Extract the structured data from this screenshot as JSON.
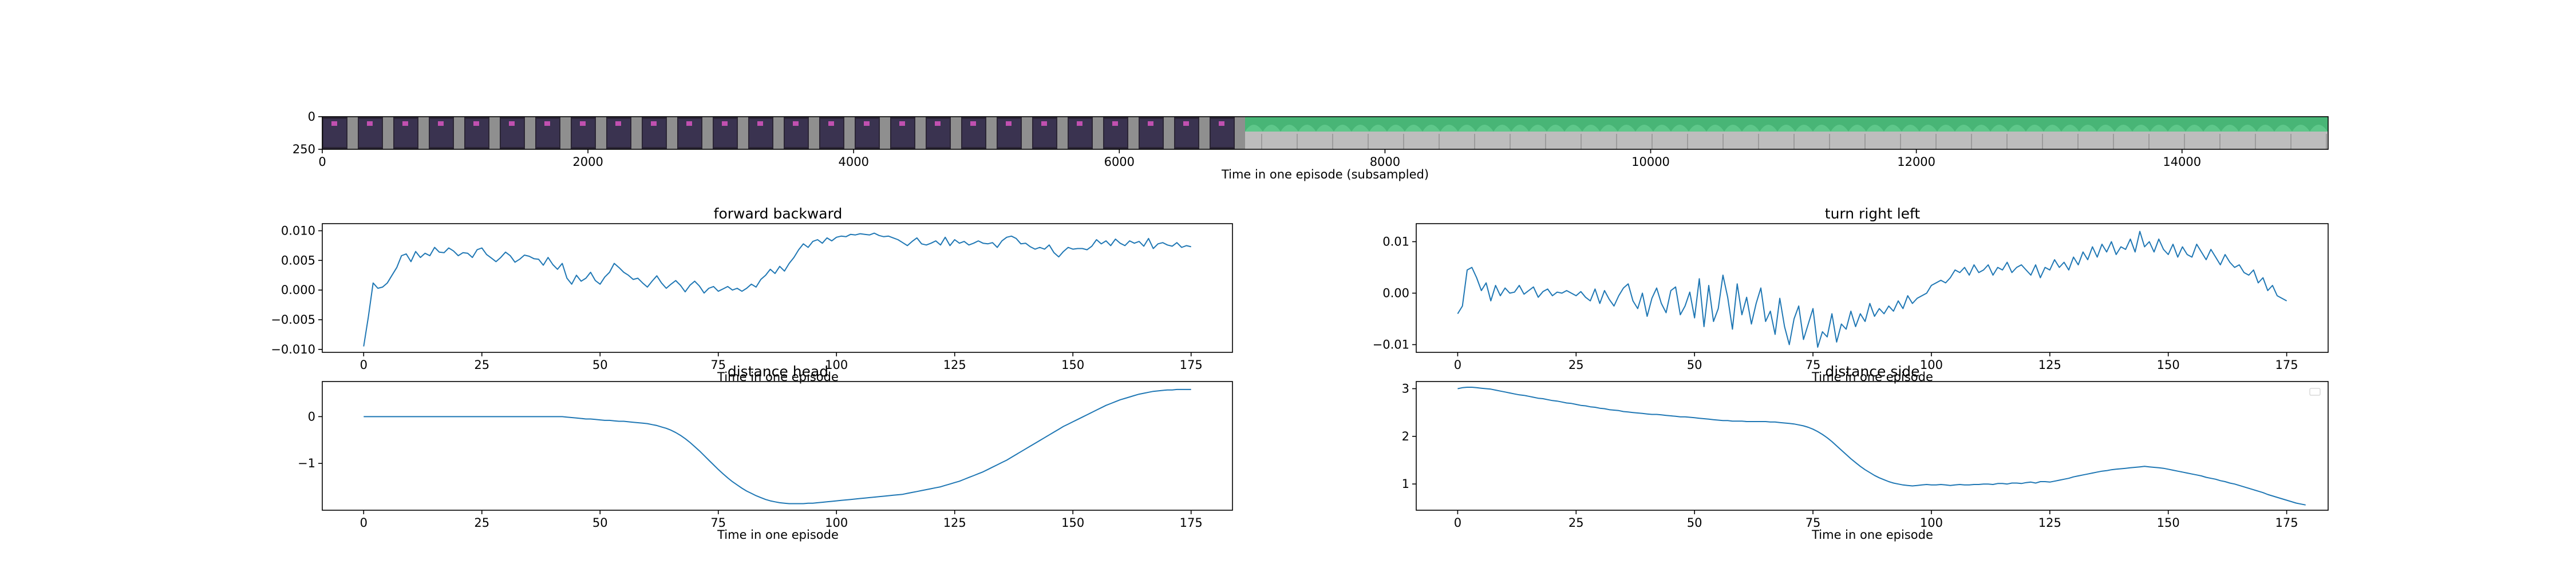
{
  "colors": {
    "line": "#1f77b4",
    "axis": "#000000",
    "background": "#ffffff"
  },
  "chart_data": [
    {
      "id": "film",
      "type": "image-strip",
      "title": "",
      "xlabel": "Time in one episode (subsampled)",
      "ylabel": "",
      "xlim": [
        0,
        15100
      ],
      "ylim": [
        250,
        0
      ],
      "xticks": [
        0,
        2000,
        4000,
        6000,
        8000,
        10000,
        12000,
        14000
      ],
      "yticks": [
        0,
        250
      ],
      "legend": "none"
    },
    {
      "id": "fb",
      "type": "line",
      "title": "forward backward",
      "xlabel": "Time in one episode",
      "ylabel": "",
      "xlim": [
        -8.75,
        183.75
      ],
      "ylim": [
        -0.0105,
        0.0112
      ],
      "xticks": [
        0,
        25,
        50,
        75,
        100,
        125,
        150,
        175
      ],
      "yticks": [
        -0.01,
        -0.005,
        0.0,
        0.005,
        0.01
      ],
      "ytick_labels": [
        "−0.010",
        "−0.005",
        "0.000",
        "0.005",
        "0.010"
      ],
      "legend": "none",
      "series": [
        {
          "x_start": 0,
          "x_step": 1,
          "values": [
            -0.0095,
            -0.0045,
            0.0012,
            0.0003,
            0.0005,
            0.0012,
            0.0025,
            0.0038,
            0.0058,
            0.0061,
            0.0048,
            0.0065,
            0.0055,
            0.0062,
            0.0058,
            0.0072,
            0.0064,
            0.0063,
            0.0071,
            0.0066,
            0.0058,
            0.0063,
            0.0062,
            0.0055,
            0.0068,
            0.0071,
            0.006,
            0.0054,
            0.0048,
            0.0055,
            0.0064,
            0.0058,
            0.0047,
            0.0052,
            0.0059,
            0.0057,
            0.0053,
            0.0052,
            0.0042,
            0.0055,
            0.0043,
            0.0035,
            0.0045,
            0.002,
            0.001,
            0.0025,
            0.0015,
            0.002,
            0.003,
            0.0016,
            0.001,
            0.0022,
            0.003,
            0.0045,
            0.0038,
            0.003,
            0.0025,
            0.0018,
            0.002,
            0.0012,
            0.0005,
            0.0015,
            0.0024,
            0.0012,
            0.0003,
            0.001,
            0.0016,
            0.0008,
            -0.0003,
            0.0008,
            0.0015,
            0.0007,
            -0.0005,
            0.0003,
            0.0006,
            -0.0002,
            0.0002,
            0.0006,
            0.0,
            0.0003,
            -0.0002,
            0.0003,
            0.001,
            0.0005,
            0.0018,
            0.0025,
            0.0035,
            0.0028,
            0.004,
            0.0032,
            0.0045,
            0.0055,
            0.0068,
            0.0078,
            0.0072,
            0.0082,
            0.0085,
            0.0079,
            0.0088,
            0.0083,
            0.0089,
            0.0091,
            0.009,
            0.0094,
            0.0093,
            0.0095,
            0.0094,
            0.0093,
            0.0096,
            0.0092,
            0.009,
            0.0091,
            0.0088,
            0.0085,
            0.008,
            0.0075,
            0.0082,
            0.0088,
            0.0078,
            0.0076,
            0.0079,
            0.0083,
            0.0076,
            0.0089,
            0.0075,
            0.0085,
            0.0079,
            0.0082,
            0.0076,
            0.0079,
            0.0083,
            0.0079,
            0.0078,
            0.008,
            0.0072,
            0.0083,
            0.0089,
            0.0091,
            0.0087,
            0.0078,
            0.0079,
            0.0073,
            0.0069,
            0.0072,
            0.0069,
            0.0076,
            0.0063,
            0.0056,
            0.0065,
            0.0072,
            0.0069,
            0.007,
            0.007,
            0.0068,
            0.0074,
            0.0085,
            0.0078,
            0.0083,
            0.0075,
            0.0086,
            0.0079,
            0.0075,
            0.0083,
            0.0079,
            0.0082,
            0.0074,
            0.0087,
            0.007,
            0.0078,
            0.008,
            0.0076,
            0.0074,
            0.008,
            0.0072,
            0.0075,
            0.0073
          ]
        }
      ]
    },
    {
      "id": "tr",
      "type": "line",
      "title": "turn right left",
      "xlabel": "Time in one episode",
      "ylabel": "",
      "xlim": [
        -8.75,
        183.75
      ],
      "ylim": [
        -0.0115,
        0.0135
      ],
      "xticks": [
        0,
        25,
        50,
        75,
        100,
        125,
        150,
        175
      ],
      "yticks": [
        -0.01,
        0.0,
        0.01
      ],
      "ytick_labels": [
        "−0.01",
        "0.00",
        "0.01"
      ],
      "legend": "none",
      "series": [
        {
          "x_start": 0,
          "x_step": 1,
          "values": [
            -0.004,
            -0.0025,
            0.0045,
            0.005,
            0.003,
            0.0005,
            0.002,
            -0.0015,
            0.0015,
            -0.0005,
            0.001,
            0.0,
            0.0002,
            0.0015,
            -0.0002,
            0.0005,
            0.0012,
            -0.0008,
            0.0003,
            0.0008,
            -0.0005,
            0.0002,
            0.0,
            0.0005,
            0.0,
            -0.0005,
            0.0003,
            -0.0008,
            -0.0015,
            0.0008,
            -0.002,
            0.0005,
            -0.0012,
            -0.0025,
            -0.0005,
            0.001,
            0.0018,
            -0.0015,
            -0.003,
            0.0,
            -0.0045,
            -0.001,
            0.001,
            -0.002,
            -0.0038,
            0.0005,
            0.0012,
            -0.0042,
            -0.0025,
            0.0002,
            -0.0048,
            0.0028,
            -0.0065,
            0.0015,
            -0.0055,
            -0.003,
            0.0035,
            -0.0008,
            -0.007,
            0.0018,
            -0.0042,
            -0.0008,
            -0.006,
            -0.002,
            0.001,
            -0.0055,
            -0.0035,
            -0.008,
            -0.001,
            -0.0065,
            -0.01,
            -0.005,
            -0.0025,
            -0.009,
            -0.006,
            -0.003,
            -0.0105,
            -0.0075,
            -0.0085,
            -0.004,
            -0.0095,
            -0.006,
            -0.007,
            -0.0035,
            -0.0065,
            -0.004,
            -0.0055,
            -0.002,
            -0.0045,
            -0.003,
            -0.004,
            -0.0025,
            -0.0035,
            -0.0015,
            -0.003,
            -0.0005,
            -0.002,
            -0.001,
            -0.0005,
            0.0,
            0.0015,
            0.002,
            0.0025,
            0.002,
            0.003,
            0.0045,
            0.004,
            0.005,
            0.0035,
            0.0055,
            0.004,
            0.0045,
            0.0055,
            0.0035,
            0.005,
            0.0045,
            0.006,
            0.004,
            0.005,
            0.0055,
            0.0045,
            0.0035,
            0.0055,
            0.003,
            0.005,
            0.0045,
            0.0065,
            0.005,
            0.006,
            0.0045,
            0.007,
            0.0055,
            0.008,
            0.0065,
            0.009,
            0.007,
            0.0095,
            0.008,
            0.01,
            0.0075,
            0.009,
            0.0085,
            0.0105,
            0.008,
            0.012,
            0.009,
            0.01,
            0.008,
            0.0105,
            0.0085,
            0.0075,
            0.0095,
            0.007,
            0.009,
            0.0075,
            0.007,
            0.0095,
            0.008,
            0.0065,
            0.0085,
            0.007,
            0.0055,
            0.0075,
            0.006,
            0.005,
            0.0055,
            0.004,
            0.0035,
            0.0045,
            0.002,
            0.003,
            0.0005,
            0.0015,
            -0.0005,
            -0.001,
            -0.0015
          ]
        }
      ]
    },
    {
      "id": "dh",
      "type": "line",
      "title": "distance head",
      "xlabel": "Time in one episode",
      "ylabel": "",
      "xlim": [
        -8.75,
        183.75
      ],
      "ylim": [
        -2.0,
        0.75
      ],
      "xticks": [
        0,
        25,
        50,
        75,
        100,
        125,
        150,
        175
      ],
      "yticks": [
        -1,
        0
      ],
      "ytick_labels": [
        "−1",
        "0"
      ],
      "legend": "none",
      "series": [
        {
          "x_start": 0,
          "x_step": 1,
          "values": [
            0.0,
            0.0,
            0.0,
            0.0,
            0.0,
            0.0,
            0.0,
            0.0,
            0.0,
            0.0,
            0.0,
            0.0,
            0.0,
            0.0,
            0.0,
            0.0,
            0.0,
            0.0,
            0.0,
            0.0,
            0.0,
            0.0,
            0.0,
            0.0,
            0.0,
            0.0,
            0.0,
            0.0,
            0.0,
            0.0,
            0.0,
            0.0,
            0.0,
            0.0,
            0.0,
            0.0,
            0.0,
            0.0,
            0.0,
            0.0,
            0.0,
            0.0,
            0.0,
            -0.01,
            -0.02,
            -0.03,
            -0.04,
            -0.05,
            -0.05,
            -0.06,
            -0.07,
            -0.08,
            -0.08,
            -0.09,
            -0.1,
            -0.1,
            -0.11,
            -0.12,
            -0.13,
            -0.14,
            -0.15,
            -0.17,
            -0.19,
            -0.22,
            -0.25,
            -0.29,
            -0.34,
            -0.4,
            -0.47,
            -0.55,
            -0.64,
            -0.73,
            -0.83,
            -0.93,
            -1.03,
            -1.13,
            -1.22,
            -1.31,
            -1.39,
            -1.46,
            -1.53,
            -1.59,
            -1.64,
            -1.69,
            -1.73,
            -1.77,
            -1.8,
            -1.82,
            -1.84,
            -1.85,
            -1.86,
            -1.86,
            -1.86,
            -1.86,
            -1.85,
            -1.85,
            -1.84,
            -1.83,
            -1.82,
            -1.81,
            -1.8,
            -1.79,
            -1.78,
            -1.77,
            -1.76,
            -1.75,
            -1.74,
            -1.73,
            -1.72,
            -1.71,
            -1.7,
            -1.69,
            -1.68,
            -1.67,
            -1.66,
            -1.64,
            -1.62,
            -1.6,
            -1.58,
            -1.56,
            -1.54,
            -1.52,
            -1.5,
            -1.47,
            -1.44,
            -1.41,
            -1.38,
            -1.34,
            -1.3,
            -1.26,
            -1.22,
            -1.18,
            -1.13,
            -1.08,
            -1.03,
            -0.98,
            -0.93,
            -0.87,
            -0.81,
            -0.75,
            -0.69,
            -0.63,
            -0.57,
            -0.51,
            -0.45,
            -0.39,
            -0.33,
            -0.27,
            -0.21,
            -0.16,
            -0.11,
            -0.06,
            -0.01,
            0.04,
            0.09,
            0.14,
            0.19,
            0.24,
            0.28,
            0.32,
            0.36,
            0.39,
            0.42,
            0.45,
            0.48,
            0.5,
            0.52,
            0.54,
            0.55,
            0.56,
            0.57,
            0.57,
            0.58,
            0.58,
            0.58,
            0.58
          ]
        }
      ]
    },
    {
      "id": "ds",
      "type": "line",
      "title": "distance side",
      "xlabel": "Time in one episode",
      "ylabel": "",
      "xlim": [
        -8.75,
        183.75
      ],
      "ylim": [
        0.45,
        3.15
      ],
      "xticks": [
        0,
        25,
        50,
        75,
        100,
        125,
        150,
        175
      ],
      "yticks": [
        1,
        2,
        3
      ],
      "ytick_labels": [
        "1",
        "2",
        "3"
      ],
      "legend": "top-right (empty)",
      "series": [
        {
          "x_start": 0,
          "x_step": 1,
          "values": [
            3.0,
            3.02,
            3.03,
            3.03,
            3.02,
            3.01,
            3.0,
            2.99,
            2.97,
            2.95,
            2.93,
            2.91,
            2.89,
            2.87,
            2.86,
            2.84,
            2.82,
            2.8,
            2.79,
            2.77,
            2.75,
            2.74,
            2.72,
            2.7,
            2.69,
            2.67,
            2.65,
            2.64,
            2.62,
            2.61,
            2.59,
            2.58,
            2.56,
            2.55,
            2.54,
            2.52,
            2.51,
            2.5,
            2.49,
            2.48,
            2.47,
            2.46,
            2.46,
            2.45,
            2.44,
            2.43,
            2.42,
            2.41,
            2.41,
            2.4,
            2.39,
            2.38,
            2.37,
            2.36,
            2.35,
            2.34,
            2.33,
            2.33,
            2.32,
            2.32,
            2.32,
            2.31,
            2.31,
            2.31,
            2.31,
            2.31,
            2.3,
            2.3,
            2.29,
            2.28,
            2.27,
            2.26,
            2.24,
            2.22,
            2.19,
            2.15,
            2.1,
            2.04,
            1.97,
            1.89,
            1.8,
            1.71,
            1.62,
            1.53,
            1.45,
            1.37,
            1.3,
            1.24,
            1.18,
            1.13,
            1.09,
            1.05,
            1.02,
            1.0,
            0.98,
            0.97,
            0.96,
            0.97,
            0.98,
            0.99,
            0.98,
            0.98,
            0.99,
            0.98,
            0.97,
            0.98,
            0.99,
            0.98,
            0.98,
            0.99,
            0.99,
            1.0,
            1.0,
            0.99,
            1.01,
            1.01,
            1.0,
            1.02,
            1.02,
            1.01,
            1.03,
            1.04,
            1.02,
            1.05,
            1.05,
            1.04,
            1.06,
            1.08,
            1.1,
            1.12,
            1.15,
            1.17,
            1.19,
            1.21,
            1.23,
            1.25,
            1.27,
            1.28,
            1.3,
            1.31,
            1.32,
            1.33,
            1.34,
            1.35,
            1.36,
            1.37,
            1.36,
            1.35,
            1.34,
            1.33,
            1.31,
            1.29,
            1.27,
            1.25,
            1.23,
            1.21,
            1.19,
            1.17,
            1.14,
            1.12,
            1.1,
            1.07,
            1.05,
            1.02,
            1.0,
            0.97,
            0.94,
            0.91,
            0.88,
            0.85,
            0.82,
            0.78,
            0.75,
            0.72,
            0.69,
            0.66,
            0.63,
            0.6,
            0.58,
            0.56
          ]
        }
      ]
    }
  ]
}
